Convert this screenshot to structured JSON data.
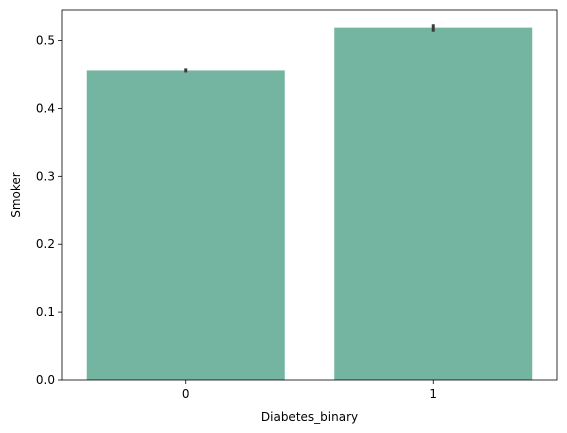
{
  "chart_data": {
    "type": "bar",
    "categories": [
      "0",
      "1"
    ],
    "values": [
      0.456,
      0.519
    ],
    "error": [
      [
        0.453,
        0.459
      ],
      [
        0.513,
        0.524
      ]
    ],
    "xlabel": "Diabetes_binary",
    "ylabel": "Smoker",
    "ylim": [
      0,
      0.545
    ],
    "yticks": [
      0.0,
      0.1,
      0.2,
      0.3,
      0.4,
      0.5
    ],
    "ytick_labels": [
      "0.0",
      "0.1",
      "0.2",
      "0.3",
      "0.4",
      "0.5"
    ],
    "bar_color": "#73b5a0",
    "error_color": "#3b3b3b",
    "grid": false,
    "legend": false
  }
}
